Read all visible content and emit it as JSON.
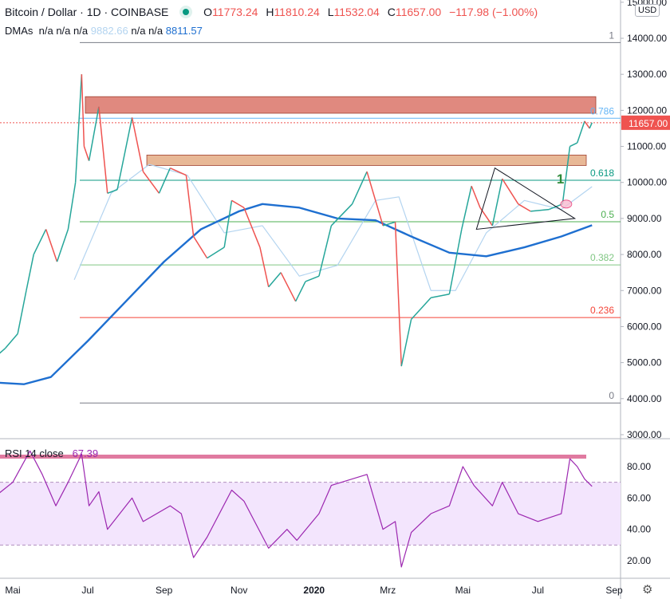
{
  "header": {
    "symbol": "Bitcoin / Dollar · 1D · COINBASE",
    "open_label": "O",
    "open": "11773.24",
    "high_label": "H",
    "high": "11810.24",
    "low_label": "L",
    "low": "11532.04",
    "close_label": "C",
    "close": "11657.00",
    "change": "−117.98 (−1.00%)",
    "dmas_label": "DMAs",
    "dmas_values": [
      "n/a",
      "n/a",
      "n/a",
      "9882.66",
      "n/a",
      "n/a",
      "8811.57"
    ]
  },
  "currency_button": "USD",
  "colors": {
    "up": "#26a69a",
    "down": "#ef5350",
    "sma50": "#b3d4f0",
    "sma200": "#1e6fd0",
    "rsi": "#9c27b0",
    "rsi_band": "#f3e5fd"
  },
  "chart_data": [
    {
      "type": "line",
      "title": "Bitcoin / Dollar · 1D · COINBASE",
      "y_axis_ticks": [
        "3000.00",
        "4000.00",
        "5000.00",
        "6000.00",
        "7000.00",
        "8000.00",
        "9000.00",
        "10000.00",
        "11000.00",
        "12000.00",
        "13000.00",
        "14000.00",
        "15000.00"
      ],
      "ylim": [
        3000,
        14000
      ],
      "x_axis_ticks": [
        {
          "label": "Mai",
          "date": "2019-05-01"
        },
        {
          "label": "Jul",
          "date": "2019-07-01"
        },
        {
          "label": "Sep",
          "date": "2019-09-01"
        },
        {
          "label": "Nov",
          "date": "2019-11-01"
        },
        {
          "label": "2020",
          "date": "2020-01-01"
        },
        {
          "label": "Mrz",
          "date": "2020-03-01"
        },
        {
          "label": "Mai",
          "date": "2020-05-01"
        },
        {
          "label": "Jul",
          "date": "2020-07-01"
        },
        {
          "label": "Sep",
          "date": "2020-09-01"
        }
      ],
      "last_price_label": "11657.00",
      "series": [
        {
          "name": "Price",
          "points": [
            [
              "2019-04-15",
              5100
            ],
            [
              "2019-04-25",
              5400
            ],
            [
              "2019-05-05",
              5800
            ],
            [
              "2019-05-12",
              7000
            ],
            [
              "2019-05-18",
              8000
            ],
            [
              "2019-05-28",
              8700
            ],
            [
              "2019-06-06",
              7800
            ],
            [
              "2019-06-15",
              8700
            ],
            [
              "2019-06-21",
              10000
            ],
            [
              "2019-06-26",
              13000
            ],
            [
              "2019-06-28",
              11000
            ],
            [
              "2019-07-02",
              10600
            ],
            [
              "2019-07-10",
              12100
            ],
            [
              "2019-07-17",
              9700
            ],
            [
              "2019-07-25",
              9800
            ],
            [
              "2019-08-06",
              11800
            ],
            [
              "2019-08-15",
              10300
            ],
            [
              "2019-08-28",
              9700
            ],
            [
              "2019-09-06",
              10400
            ],
            [
              "2019-09-19",
              10200
            ],
            [
              "2019-09-25",
              8500
            ],
            [
              "2019-10-06",
              7900
            ],
            [
              "2019-10-20",
              8200
            ],
            [
              "2019-10-26",
              9500
            ],
            [
              "2019-11-05",
              9300
            ],
            [
              "2019-11-18",
              8200
            ],
            [
              "2019-11-25",
              7100
            ],
            [
              "2019-12-05",
              7500
            ],
            [
              "2019-12-17",
              6700
            ],
            [
              "2019-12-25",
              7250
            ],
            [
              "2020-01-05",
              7400
            ],
            [
              "2020-01-15",
              8800
            ],
            [
              "2020-02-01",
              9400
            ],
            [
              "2020-02-13",
              10300
            ],
            [
              "2020-02-26",
              8800
            ],
            [
              "2020-03-07",
              8900
            ],
            [
              "2020-03-12",
              4900
            ],
            [
              "2020-03-20",
              6200
            ],
            [
              "2020-04-05",
              6800
            ],
            [
              "2020-04-20",
              6900
            ],
            [
              "2020-04-30",
              8700
            ],
            [
              "2020-05-08",
              9900
            ],
            [
              "2020-05-15",
              9300
            ],
            [
              "2020-05-25",
              8800
            ],
            [
              "2020-06-02",
              10100
            ],
            [
              "2020-06-15",
              9400
            ],
            [
              "2020-06-25",
              9200
            ],
            [
              "2020-07-10",
              9250
            ],
            [
              "2020-07-21",
              9400
            ],
            [
              "2020-07-27",
              11000
            ],
            [
              "2020-08-02",
              11100
            ],
            [
              "2020-08-08",
              11700
            ],
            [
              "2020-08-12",
              11500
            ],
            [
              "2020-08-14",
              11657
            ]
          ]
        },
        {
          "name": "DMA 50",
          "value": "9882.66",
          "points": [
            [
              "2019-06-20",
              7300
            ],
            [
              "2019-07-20",
              9700
            ],
            [
              "2019-08-20",
              10500
            ],
            [
              "2019-09-20",
              10200
            ],
            [
              "2019-10-20",
              8600
            ],
            [
              "2019-11-20",
              8800
            ],
            [
              "2019-12-20",
              7400
            ],
            [
              "2020-01-20",
              7700
            ],
            [
              "2020-02-20",
              9500
            ],
            [
              "2020-03-10",
              9600
            ],
            [
              "2020-04-05",
              7000
            ],
            [
              "2020-04-25",
              7000
            ],
            [
              "2020-05-20",
              8600
            ],
            [
              "2020-06-20",
              9500
            ],
            [
              "2020-07-20",
              9250
            ],
            [
              "2020-08-14",
              9883
            ]
          ]
        },
        {
          "name": "DMA 200",
          "value": "8811.57",
          "points": [
            [
              "2019-04-15",
              4450
            ],
            [
              "2019-05-10",
              4400
            ],
            [
              "2019-06-01",
              4600
            ],
            [
              "2019-07-01",
              5600
            ],
            [
              "2019-08-01",
              6700
            ],
            [
              "2019-09-01",
              7800
            ],
            [
              "2019-10-01",
              8700
            ],
            [
              "2019-11-01",
              9200
            ],
            [
              "2019-11-20",
              9400
            ],
            [
              "2019-12-20",
              9300
            ],
            [
              "2020-01-20",
              9000
            ],
            [
              "2020-02-20",
              8950
            ],
            [
              "2020-03-20",
              8500
            ],
            [
              "2020-04-20",
              8050
            ],
            [
              "2020-05-20",
              7950
            ],
            [
              "2020-06-20",
              8200
            ],
            [
              "2020-07-20",
              8500
            ],
            [
              "2020-08-14",
              8812
            ]
          ]
        }
      ],
      "fibonacci": [
        {
          "label": "1",
          "price": 13880,
          "color": "#787b86"
        },
        {
          "label": "0.786",
          "price": 11780,
          "color": "#64b5f6"
        },
        {
          "label": "0.618",
          "price": 10060,
          "color": "#089981"
        },
        {
          "label": "0.5",
          "price": 8910,
          "color": "#4caf50"
        },
        {
          "label": "0.382",
          "price": 7710,
          "color": "#81c784"
        },
        {
          "label": "0.236",
          "price": 6250,
          "color": "#f44336"
        },
        {
          "label": "0",
          "price": 3880,
          "color": "#787b86"
        }
      ],
      "zones": [
        {
          "from": 11920,
          "to": 12380,
          "start": "2019-06-29",
          "color": "#e0897f"
        },
        {
          "from": 10470,
          "to": 10760,
          "start": "2019-08-18",
          "color": "#e8b896"
        }
      ],
      "annotations": [
        {
          "text": "1",
          "date": "2020-07-24",
          "price": 10100,
          "color": "#2e8b3a"
        }
      ],
      "triangle": [
        [
          "2020-05-27",
          10400
        ],
        [
          "2020-07-31",
          9000
        ],
        [
          "2020-05-12",
          8700
        ]
      ]
    },
    {
      "type": "line",
      "title": "RSI 14 close",
      "last_value": "67.39",
      "ylim": [
        13,
        92
      ],
      "y_axis_ticks": [
        "20.00",
        "40.00",
        "60.00",
        "80.00"
      ],
      "bands": [
        30,
        70
      ],
      "series": [
        {
          "name": "RSI",
          "points": [
            [
              "2019-04-15",
              60
            ],
            [
              "2019-05-01",
              70
            ],
            [
              "2019-05-15",
              90
            ],
            [
              "2019-05-25",
              75
            ],
            [
              "2019-06-05",
              55
            ],
            [
              "2019-06-15",
              70
            ],
            [
              "2019-06-26",
              88
            ],
            [
              "2019-07-02",
              55
            ],
            [
              "2019-07-10",
              64
            ],
            [
              "2019-07-17",
              40
            ],
            [
              "2019-08-06",
              60
            ],
            [
              "2019-08-15",
              45
            ],
            [
              "2019-09-06",
              55
            ],
            [
              "2019-09-15",
              50
            ],
            [
              "2019-09-25",
              22
            ],
            [
              "2019-10-06",
              35
            ],
            [
              "2019-10-26",
              65
            ],
            [
              "2019-11-05",
              58
            ],
            [
              "2019-11-25",
              28
            ],
            [
              "2019-12-10",
              40
            ],
            [
              "2019-12-18",
              33
            ],
            [
              "2020-01-05",
              50
            ],
            [
              "2020-01-15",
              68
            ],
            [
              "2020-02-13",
              75
            ],
            [
              "2020-02-26",
              40
            ],
            [
              "2020-03-07",
              45
            ],
            [
              "2020-03-12",
              16
            ],
            [
              "2020-03-20",
              38
            ],
            [
              "2020-04-05",
              50
            ],
            [
              "2020-04-20",
              55
            ],
            [
              "2020-05-01",
              80
            ],
            [
              "2020-05-10",
              68
            ],
            [
              "2020-05-25",
              55
            ],
            [
              "2020-06-02",
              70
            ],
            [
              "2020-06-15",
              50
            ],
            [
              "2020-07-01",
              45
            ],
            [
              "2020-07-20",
              50
            ],
            [
              "2020-07-27",
              85
            ],
            [
              "2020-08-02",
              80
            ],
            [
              "2020-08-08",
              72
            ],
            [
              "2020-08-14",
              67.39
            ]
          ]
        }
      ]
    }
  ],
  "rsi_legend": {
    "label": "RSI",
    "params": "14 close",
    "value": "67.39"
  }
}
